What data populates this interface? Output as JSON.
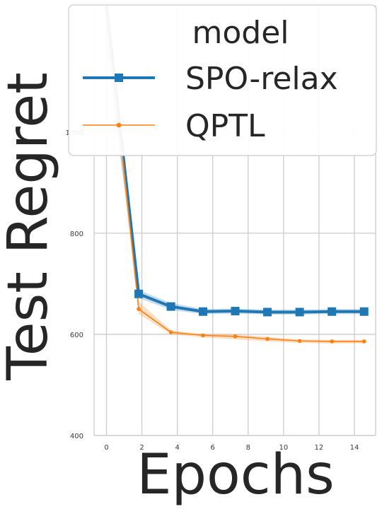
{
  "chart_data": {
    "type": "line",
    "title": "",
    "xlabel": "Epochs",
    "ylabel": "Test Regret",
    "xlim": [
      -0.7,
      15.2
    ],
    "ylim": [
      400,
      1250
    ],
    "xticks": [
      0,
      2,
      4,
      6,
      8,
      10,
      12,
      14
    ],
    "yticks": [
      400,
      600,
      800,
      1000
    ],
    "grid": true,
    "legend": {
      "title": "model",
      "placement": "top",
      "entries": [
        "SPO-relax",
        "QPTL"
      ]
    },
    "series": [
      {
        "name": "SPO-relax",
        "color": "#1f77b4",
        "marker": "square",
        "x": [
          0,
          1.82,
          3.64,
          5.45,
          7.27,
          9.09,
          10.91,
          12.73,
          14.55
        ],
        "y": [
          1250,
          680,
          655,
          645,
          646,
          644,
          644,
          645,
          645
        ],
        "lower": [
          1160,
          672,
          648,
          640,
          641,
          639,
          639,
          640,
          640
        ],
        "upper": [
          1250,
          688,
          662,
          650,
          651,
          649,
          649,
          650,
          650
        ]
      },
      {
        "name": "QPTL",
        "color": "#ff7f0e",
        "marker": "circle",
        "x": [
          0,
          1.82,
          3.64,
          5.45,
          7.27,
          9.09,
          10.91,
          12.73,
          14.55
        ],
        "y": [
          1250,
          650,
          604,
          598,
          596,
          591,
          587,
          586,
          586
        ],
        "lower": [
          1200,
          640,
          600,
          594,
          590,
          586,
          583,
          582,
          582
        ],
        "upper": [
          1250,
          665,
          608,
          601,
          600,
          595,
          590,
          589,
          589
        ]
      }
    ]
  }
}
